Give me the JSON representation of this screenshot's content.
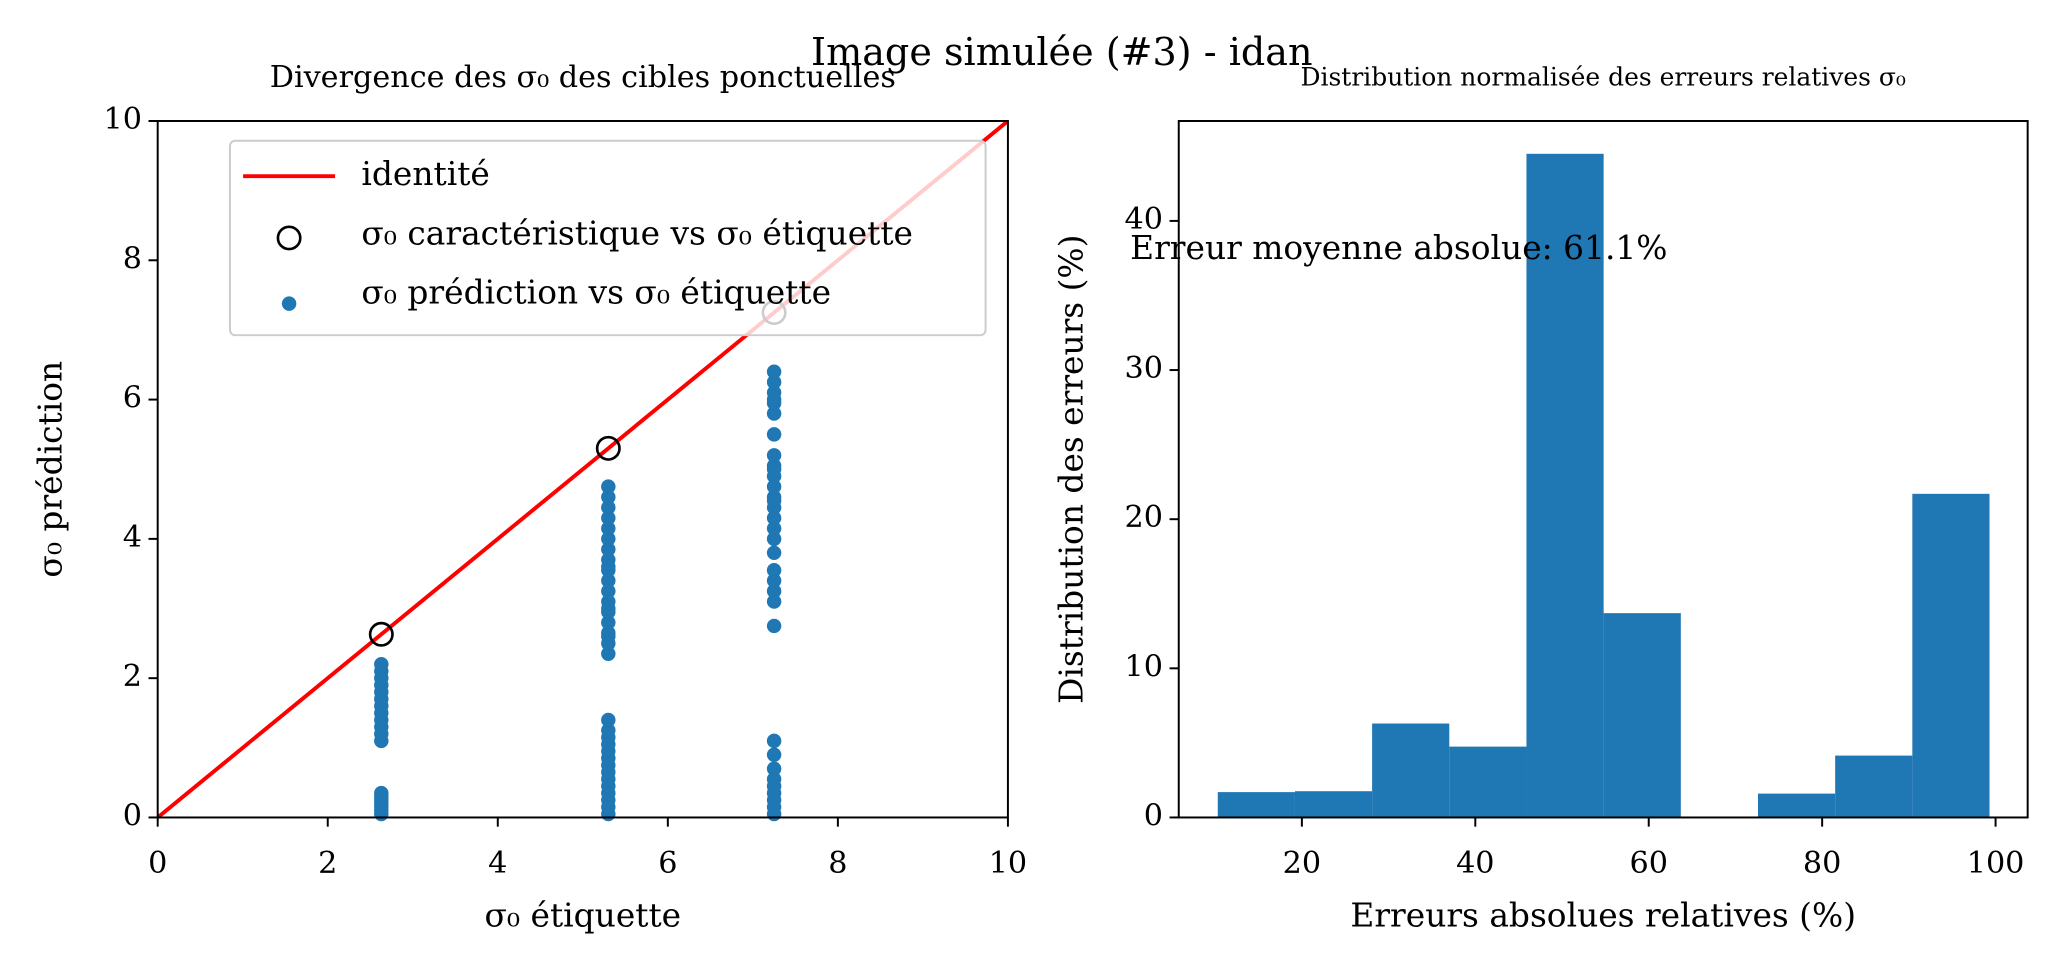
{
  "suptitle": "Image simulée (#3) - idan",
  "chart_data": [
    {
      "type": "scatter",
      "title": "Divergence des σ₀ des cibles ponctuelles",
      "xlabel": "σ₀ étiquette",
      "ylabel": "σ₀ prédiction",
      "xlim": [
        0,
        10
      ],
      "ylim": [
        0,
        10
      ],
      "xticks": [
        0,
        2,
        4,
        6,
        8,
        10
      ],
      "yticks": [
        0,
        2,
        4,
        6,
        8,
        10
      ],
      "legend": "upper right",
      "series": [
        {
          "name": "identité",
          "marker": "line",
          "color": "#ff0000",
          "x": [
            0,
            10
          ],
          "values": [
            0,
            10
          ]
        },
        {
          "name": "σ₀ caractéristique vs σ₀ étiquette",
          "marker": "hollow",
          "color": "#000000",
          "x": [
            2.63,
            5.3,
            7.25
          ],
          "values": [
            2.63,
            5.3,
            7.25
          ]
        },
        {
          "name": "σ₀ prédiction vs σ₀ étiquette",
          "marker": "dot",
          "color": "#1f77b4",
          "x": [
            2.63,
            2.63,
            2.63,
            2.63,
            2.63,
            2.63,
            2.63,
            2.63,
            2.63,
            2.63,
            2.63,
            2.63,
            2.63,
            2.63,
            2.63,
            2.63,
            2.63,
            2.63,
            2.63,
            5.3,
            5.3,
            5.3,
            5.3,
            5.3,
            5.3,
            5.3,
            5.3,
            5.3,
            5.3,
            5.3,
            5.3,
            5.3,
            5.3,
            5.3,
            5.3,
            5.3,
            5.3,
            5.3,
            5.3,
            5.3,
            5.3,
            5.3,
            5.3,
            5.3,
            5.3,
            5.3,
            5.3,
            5.3,
            5.3,
            5.3,
            5.3,
            5.3,
            5.3,
            7.25,
            7.25,
            7.25,
            7.25,
            7.25,
            7.25,
            7.25,
            7.25,
            7.25,
            7.25,
            7.25,
            7.25,
            7.25,
            7.25,
            7.25,
            7.25,
            7.25,
            7.25,
            7.25,
            7.25,
            7.25,
            7.25,
            7.25,
            7.25,
            7.25,
            7.25,
            7.25,
            7.25,
            7.25,
            7.25,
            7.25,
            7.25,
            7.25
          ],
          "values": [
            0.05,
            0.1,
            0.15,
            0.2,
            0.25,
            0.3,
            0.35,
            1.1,
            1.2,
            1.3,
            1.4,
            1.5,
            1.6,
            1.7,
            1.8,
            1.9,
            2.0,
            2.1,
            2.2,
            0.05,
            0.15,
            0.25,
            0.35,
            0.45,
            0.55,
            0.65,
            0.75,
            0.85,
            0.95,
            1.05,
            1.15,
            1.25,
            1.4,
            2.35,
            2.5,
            2.65,
            2.8,
            2.95,
            3.1,
            3.25,
            3.4,
            3.55,
            3.7,
            3.85,
            4.0,
            4.15,
            4.3,
            4.45,
            4.6,
            4.75,
            3.0,
            3.6,
            2.6,
            0.05,
            0.15,
            0.25,
            0.35,
            0.45,
            0.55,
            0.7,
            0.9,
            1.1,
            2.75,
            3.1,
            3.25,
            3.4,
            3.55,
            4.0,
            4.15,
            4.3,
            4.45,
            4.6,
            4.75,
            4.9,
            5.05,
            5.2,
            5.5,
            5.8,
            5.95,
            6.1,
            6.25,
            6.4,
            3.8,
            4.55,
            5.0,
            6.0
          ]
        }
      ]
    },
    {
      "type": "histogram",
      "title": "Distribution normalisée des erreurs relatives σ₀",
      "xlabel": "Erreurs absolues relatives (%)",
      "ylabel": "Distribution des erreurs (%)",
      "annotation": "Erreur moyenne absolue: 61.1%",
      "xlim": [
        5.8,
        103.7
      ],
      "ylim": [
        0,
        46.7
      ],
      "xticks": [
        20,
        40,
        60,
        80,
        100
      ],
      "yticks": [
        0,
        10,
        20,
        30,
        40
      ],
      "color": "#1f77b4",
      "bins": [
        10.3,
        19.2,
        28.1,
        37.0,
        45.9,
        54.8,
        63.7,
        72.6,
        81.5,
        90.4,
        99.3
      ],
      "values": [
        1.7,
        1.76,
        6.3,
        4.75,
        44.5,
        13.7,
        0,
        1.6,
        4.15,
        21.7
      ]
    }
  ]
}
